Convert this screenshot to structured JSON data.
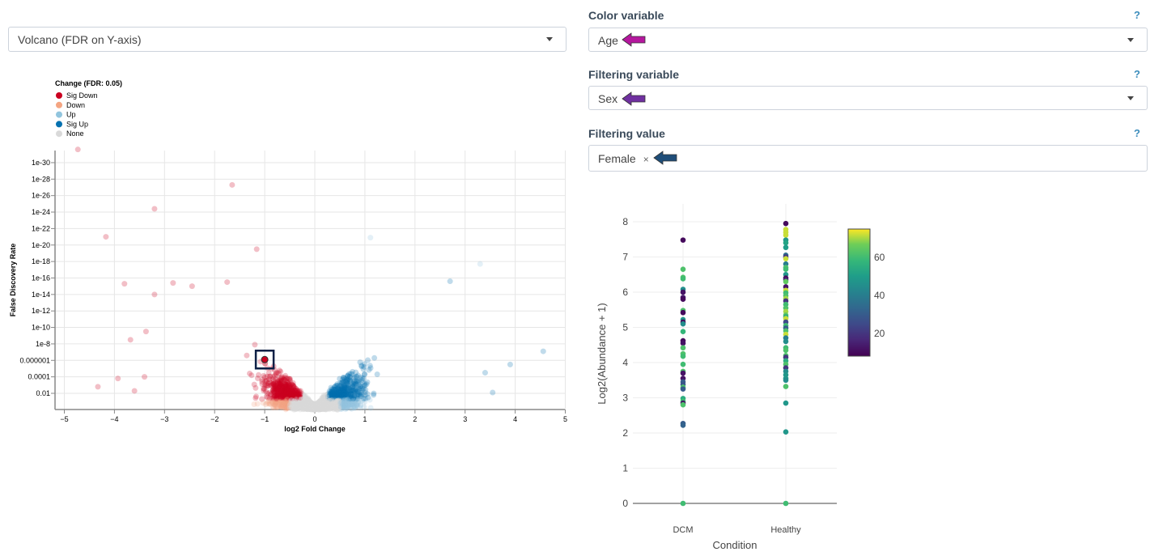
{
  "plot_type_select": {
    "value": "Volcano (FDR on Y-axis)"
  },
  "color_variable": {
    "label": "Color variable",
    "help": "?",
    "value": "Age",
    "arrow_color": "#b5179e"
  },
  "filtering_variable": {
    "label": "Filtering variable",
    "help": "?",
    "value": "Sex",
    "arrow_color": "#7030a0"
  },
  "filtering_value": {
    "label": "Filtering value",
    "help": "?",
    "tag": "Female",
    "remove": "×",
    "arrow_color": "#1f4e79"
  },
  "chart_data": [
    {
      "type": "scatter",
      "xlabel": "log2 Fold Change",
      "ylabel": "False Discovery Rate",
      "xlim": [
        -5.2,
        5
      ],
      "y_scale": "log (reversed, -log10)",
      "x_ticks": [
        "-5",
        "-4",
        "-3",
        "-2",
        "-1",
        "0",
        "1",
        "2",
        "3",
        "4",
        "5"
      ],
      "y_ticks": [
        "1e-30",
        "1e-28",
        "1e-26",
        "1e-24",
        "1e-22",
        "1e-20",
        "1e-18",
        "1e-16",
        "1e-14",
        "1e-12",
        "1e-10",
        "1e-8",
        "0.000001",
        "0.0001",
        "0.01"
      ],
      "legend": {
        "title": "Change (FDR: 0.05)",
        "placement": "top-left",
        "entries": [
          {
            "name": "Sig Down",
            "color": "#ca0020"
          },
          {
            "name": "Down",
            "color": "#f4a582"
          },
          {
            "name": "Up",
            "color": "#92c5de"
          },
          {
            "name": "Sig Up",
            "color": "#0571b0"
          },
          {
            "name": "None",
            "color": "#d9d9d9"
          }
        ]
      },
      "outliers": [
        {
          "x": -4.73,
          "neglog10_fdr": 31.6
        },
        {
          "x": -1.65,
          "neglog10_fdr": 27.3
        },
        {
          "x": -3.2,
          "neglog10_fdr": 24.4
        },
        {
          "x": -4.17,
          "neglog10_fdr": 21
        },
        {
          "x": -1.16,
          "neglog10_fdr": 19.5
        },
        {
          "x": -3.8,
          "neglog10_fdr": 15.3
        },
        {
          "x": -3.2,
          "neglog10_fdr": 14
        },
        {
          "x": -2.83,
          "neglog10_fdr": 15.4
        },
        {
          "x": -1.75,
          "neglog10_fdr": 15.5
        },
        {
          "x": -2.45,
          "neglog10_fdr": 15
        },
        {
          "x": -3.68,
          "neglog10_fdr": 8.5
        },
        {
          "x": -3.37,
          "neglog10_fdr": 9.5
        },
        {
          "x": -4.33,
          "neglog10_fdr": 2.8
        },
        {
          "x": -3.93,
          "neglog10_fdr": 3.8
        },
        {
          "x": -3.6,
          "neglog10_fdr": 2.3
        },
        {
          "x": -3.4,
          "neglog10_fdr": 4
        },
        {
          "x": 1.11,
          "neglog10_fdr": 20.9
        },
        {
          "x": 3.3,
          "neglog10_fdr": 17.7
        },
        {
          "x": 4.56,
          "neglog10_fdr": 7.1
        },
        {
          "x": 3.9,
          "neglog10_fdr": 5.5
        },
        {
          "x": 3.55,
          "neglog10_fdr": 2.1
        },
        {
          "x": 2.7,
          "neglog10_fdr": 15.6
        },
        {
          "x": 3.4,
          "neglog10_fdr": 4.5
        }
      ],
      "highlighted_point": {
        "x": -1.0,
        "neglog10_fdr": 6.1
      }
    },
    {
      "type": "scatter",
      "xlabel": "Condition",
      "ylabel": "Log2(Abundance + 1)",
      "categories": [
        "DCM",
        "Healthy"
      ],
      "ylim": [
        0,
        8
      ],
      "y_ticks": [
        "0",
        "1",
        "2",
        "3",
        "4",
        "5",
        "6",
        "7",
        "8"
      ],
      "colorbar": {
        "variable": "Age",
        "colorscale": "viridis",
        "range": [
          8,
          75
        ],
        "ticks": [
          "20",
          "40",
          "60"
        ]
      },
      "series": [
        {
          "category": "DCM",
          "points": [
            [
              7.48,
              10
            ],
            [
              6.65,
              62
            ],
            [
              6.42,
              62
            ],
            [
              6.38,
              60
            ],
            [
              6.08,
              45
            ],
            [
              6.0,
              12
            ],
            [
              5.85,
              14
            ],
            [
              5.8,
              10
            ],
            [
              5.48,
              62
            ],
            [
              5.42,
              10
            ],
            [
              5.22,
              48
            ],
            [
              5.15,
              10
            ],
            [
              5.1,
              45
            ],
            [
              4.88,
              58
            ],
            [
              4.62,
              10
            ],
            [
              4.55,
              12
            ],
            [
              4.42,
              62
            ],
            [
              4.25,
              62
            ],
            [
              4.18,
              60
            ],
            [
              3.95,
              60
            ],
            [
              3.75,
              62
            ],
            [
              3.7,
              12
            ],
            [
              3.55,
              12
            ],
            [
              3.45,
              30
            ],
            [
              3.38,
              28
            ],
            [
              3.3,
              62
            ],
            [
              3.25,
              30
            ],
            [
              2.98,
              55
            ],
            [
              2.9,
              60
            ],
            [
              2.85,
              12
            ],
            [
              2.8,
              62
            ],
            [
              2.27,
              30
            ],
            [
              2.22,
              32
            ],
            [
              0,
              60
            ]
          ]
        },
        {
          "category": "Healthy",
          "points": [
            [
              7.95,
              10
            ],
            [
              7.78,
              72
            ],
            [
              7.7,
              72
            ],
            [
              7.62,
              72
            ],
            [
              7.48,
              48
            ],
            [
              7.4,
              52
            ],
            [
              7.27,
              50
            ],
            [
              7.05,
              35
            ],
            [
              7.0,
              20
            ],
            [
              6.95,
              72
            ],
            [
              6.8,
              40
            ],
            [
              6.7,
              62
            ],
            [
              6.65,
              60
            ],
            [
              6.5,
              48
            ],
            [
              6.4,
              10
            ],
            [
              6.35,
              15
            ],
            [
              6.3,
              65
            ],
            [
              6.15,
              12
            ],
            [
              6.05,
              72
            ],
            [
              5.98,
              60
            ],
            [
              5.9,
              62
            ],
            [
              5.82,
              70
            ],
            [
              5.75,
              20
            ],
            [
              5.65,
              60
            ],
            [
              5.55,
              62
            ],
            [
              5.45,
              70
            ],
            [
              5.35,
              65
            ],
            [
              5.3,
              55
            ],
            [
              5.25,
              72
            ],
            [
              5.15,
              25
            ],
            [
              5.05,
              60
            ],
            [
              4.98,
              30
            ],
            [
              4.9,
              62
            ],
            [
              4.8,
              72
            ],
            [
              4.7,
              40
            ],
            [
              4.6,
              45
            ],
            [
              4.42,
              60
            ],
            [
              4.35,
              62
            ],
            [
              4.2,
              62
            ],
            [
              4.15,
              20
            ],
            [
              4.05,
              55
            ],
            [
              3.95,
              62
            ],
            [
              3.85,
              20
            ],
            [
              3.75,
              45
            ],
            [
              3.65,
              48
            ],
            [
              3.55,
              48
            ],
            [
              3.5,
              45
            ],
            [
              3.32,
              62
            ],
            [
              2.85,
              48
            ],
            [
              2.03,
              48
            ],
            [
              0,
              60
            ]
          ]
        }
      ]
    }
  ]
}
